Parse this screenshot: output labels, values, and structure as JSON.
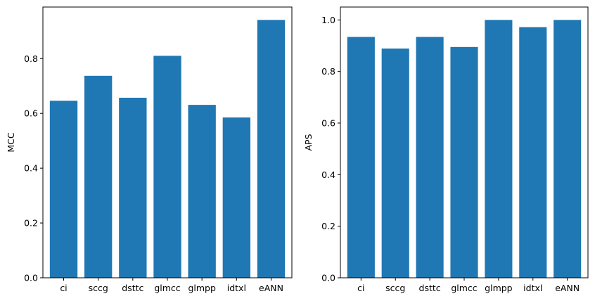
{
  "chart_data": [
    {
      "type": "bar",
      "categories": [
        "ci",
        "sccg",
        "dsttc",
        "glmcc",
        "glmpp",
        "idtxl",
        "eANN"
      ],
      "values": [
        0.646,
        0.737,
        0.657,
        0.81,
        0.631,
        0.585,
        0.941
      ],
      "title": "",
      "xlabel": "",
      "ylabel": "MCC",
      "ylim": [
        0,
        0.988
      ],
      "yticks": [
        "0.0",
        "0.2",
        "0.4",
        "0.6",
        "0.8"
      ],
      "grid": false,
      "color": "#1f77b4"
    },
    {
      "type": "bar",
      "categories": [
        "ci",
        "sccg",
        "dsttc",
        "glmcc",
        "glmpp",
        "idtxl",
        "eANN"
      ],
      "values": [
        0.934,
        0.889,
        0.934,
        0.895,
        1.0,
        0.972,
        1.0
      ],
      "title": "",
      "xlabel": "",
      "ylabel": "APS",
      "ylim": [
        0,
        1.05
      ],
      "yticks": [
        "0.0",
        "0.2",
        "0.4",
        "0.6",
        "0.8",
        "1.0"
      ],
      "grid": false,
      "color": "#1f77b4"
    }
  ]
}
